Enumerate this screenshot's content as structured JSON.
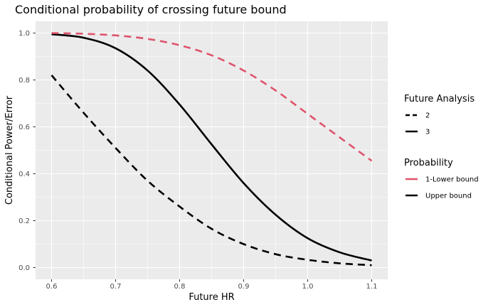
{
  "chart_data": {
    "type": "line",
    "title": "Conditional probability of crossing future bound",
    "xlabel": "Future HR",
    "ylabel": "Conditional Power/Error",
    "xlim": [
      0.575,
      1.125
    ],
    "ylim": [
      -0.05,
      1.05
    ],
    "x_ticks": [
      0.6,
      0.7,
      0.8,
      0.9,
      1.0,
      1.1
    ],
    "x_tick_labels": [
      "0.6",
      "0.7",
      "0.8",
      "0.9",
      "1.0",
      "1.1"
    ],
    "y_ticks": [
      0.0,
      0.2,
      0.4,
      0.6,
      0.8,
      1.0
    ],
    "y_tick_labels": [
      "0.0",
      "0.2",
      "0.4",
      "0.6",
      "0.8",
      "1.0"
    ],
    "grid": true,
    "legend_position": "right",
    "legends": [
      {
        "title": "Future Analysis",
        "entries": [
          {
            "label": "2",
            "linetype": "dashed",
            "color": "#000000"
          },
          {
            "label": "3",
            "linetype": "solid",
            "color": "#000000"
          }
        ]
      },
      {
        "title": "Probability",
        "entries": [
          {
            "label": "1-Lower bound",
            "linetype": "solid",
            "color": "#DF536B"
          },
          {
            "label": "Upper bound",
            "linetype": "solid",
            "color": "#000000"
          }
        ]
      }
    ],
    "series": [
      {
        "analysis": "2",
        "probability": "Upper bound",
        "color": "#000000",
        "linetype": "dashed",
        "x": [
          0.6,
          0.65,
          0.7,
          0.75,
          0.8,
          0.85,
          0.9,
          0.95,
          1.0,
          1.05,
          1.1
        ],
        "y": [
          0.82,
          0.66,
          0.51,
          0.37,
          0.26,
          0.165,
          0.1,
          0.057,
          0.033,
          0.018,
          0.01
        ]
      },
      {
        "analysis": "3",
        "probability": "Upper bound",
        "color": "#000000",
        "linetype": "solid",
        "x": [
          0.6,
          0.65,
          0.7,
          0.75,
          0.8,
          0.85,
          0.9,
          0.95,
          1.0,
          1.05,
          1.1
        ],
        "y": [
          0.995,
          0.98,
          0.935,
          0.84,
          0.695,
          0.525,
          0.36,
          0.225,
          0.125,
          0.065,
          0.03
        ]
      },
      {
        "analysis": "3",
        "probability": "1-Lower bound",
        "color": "#DF536B",
        "linetype": "dashed",
        "x": [
          0.6,
          0.65,
          0.7,
          0.75,
          0.8,
          0.85,
          0.9,
          0.95,
          1.0,
          1.05,
          1.1
        ],
        "y": [
          1.0,
          0.997,
          0.99,
          0.975,
          0.948,
          0.905,
          0.84,
          0.755,
          0.655,
          0.555,
          0.455
        ]
      }
    ]
  }
}
